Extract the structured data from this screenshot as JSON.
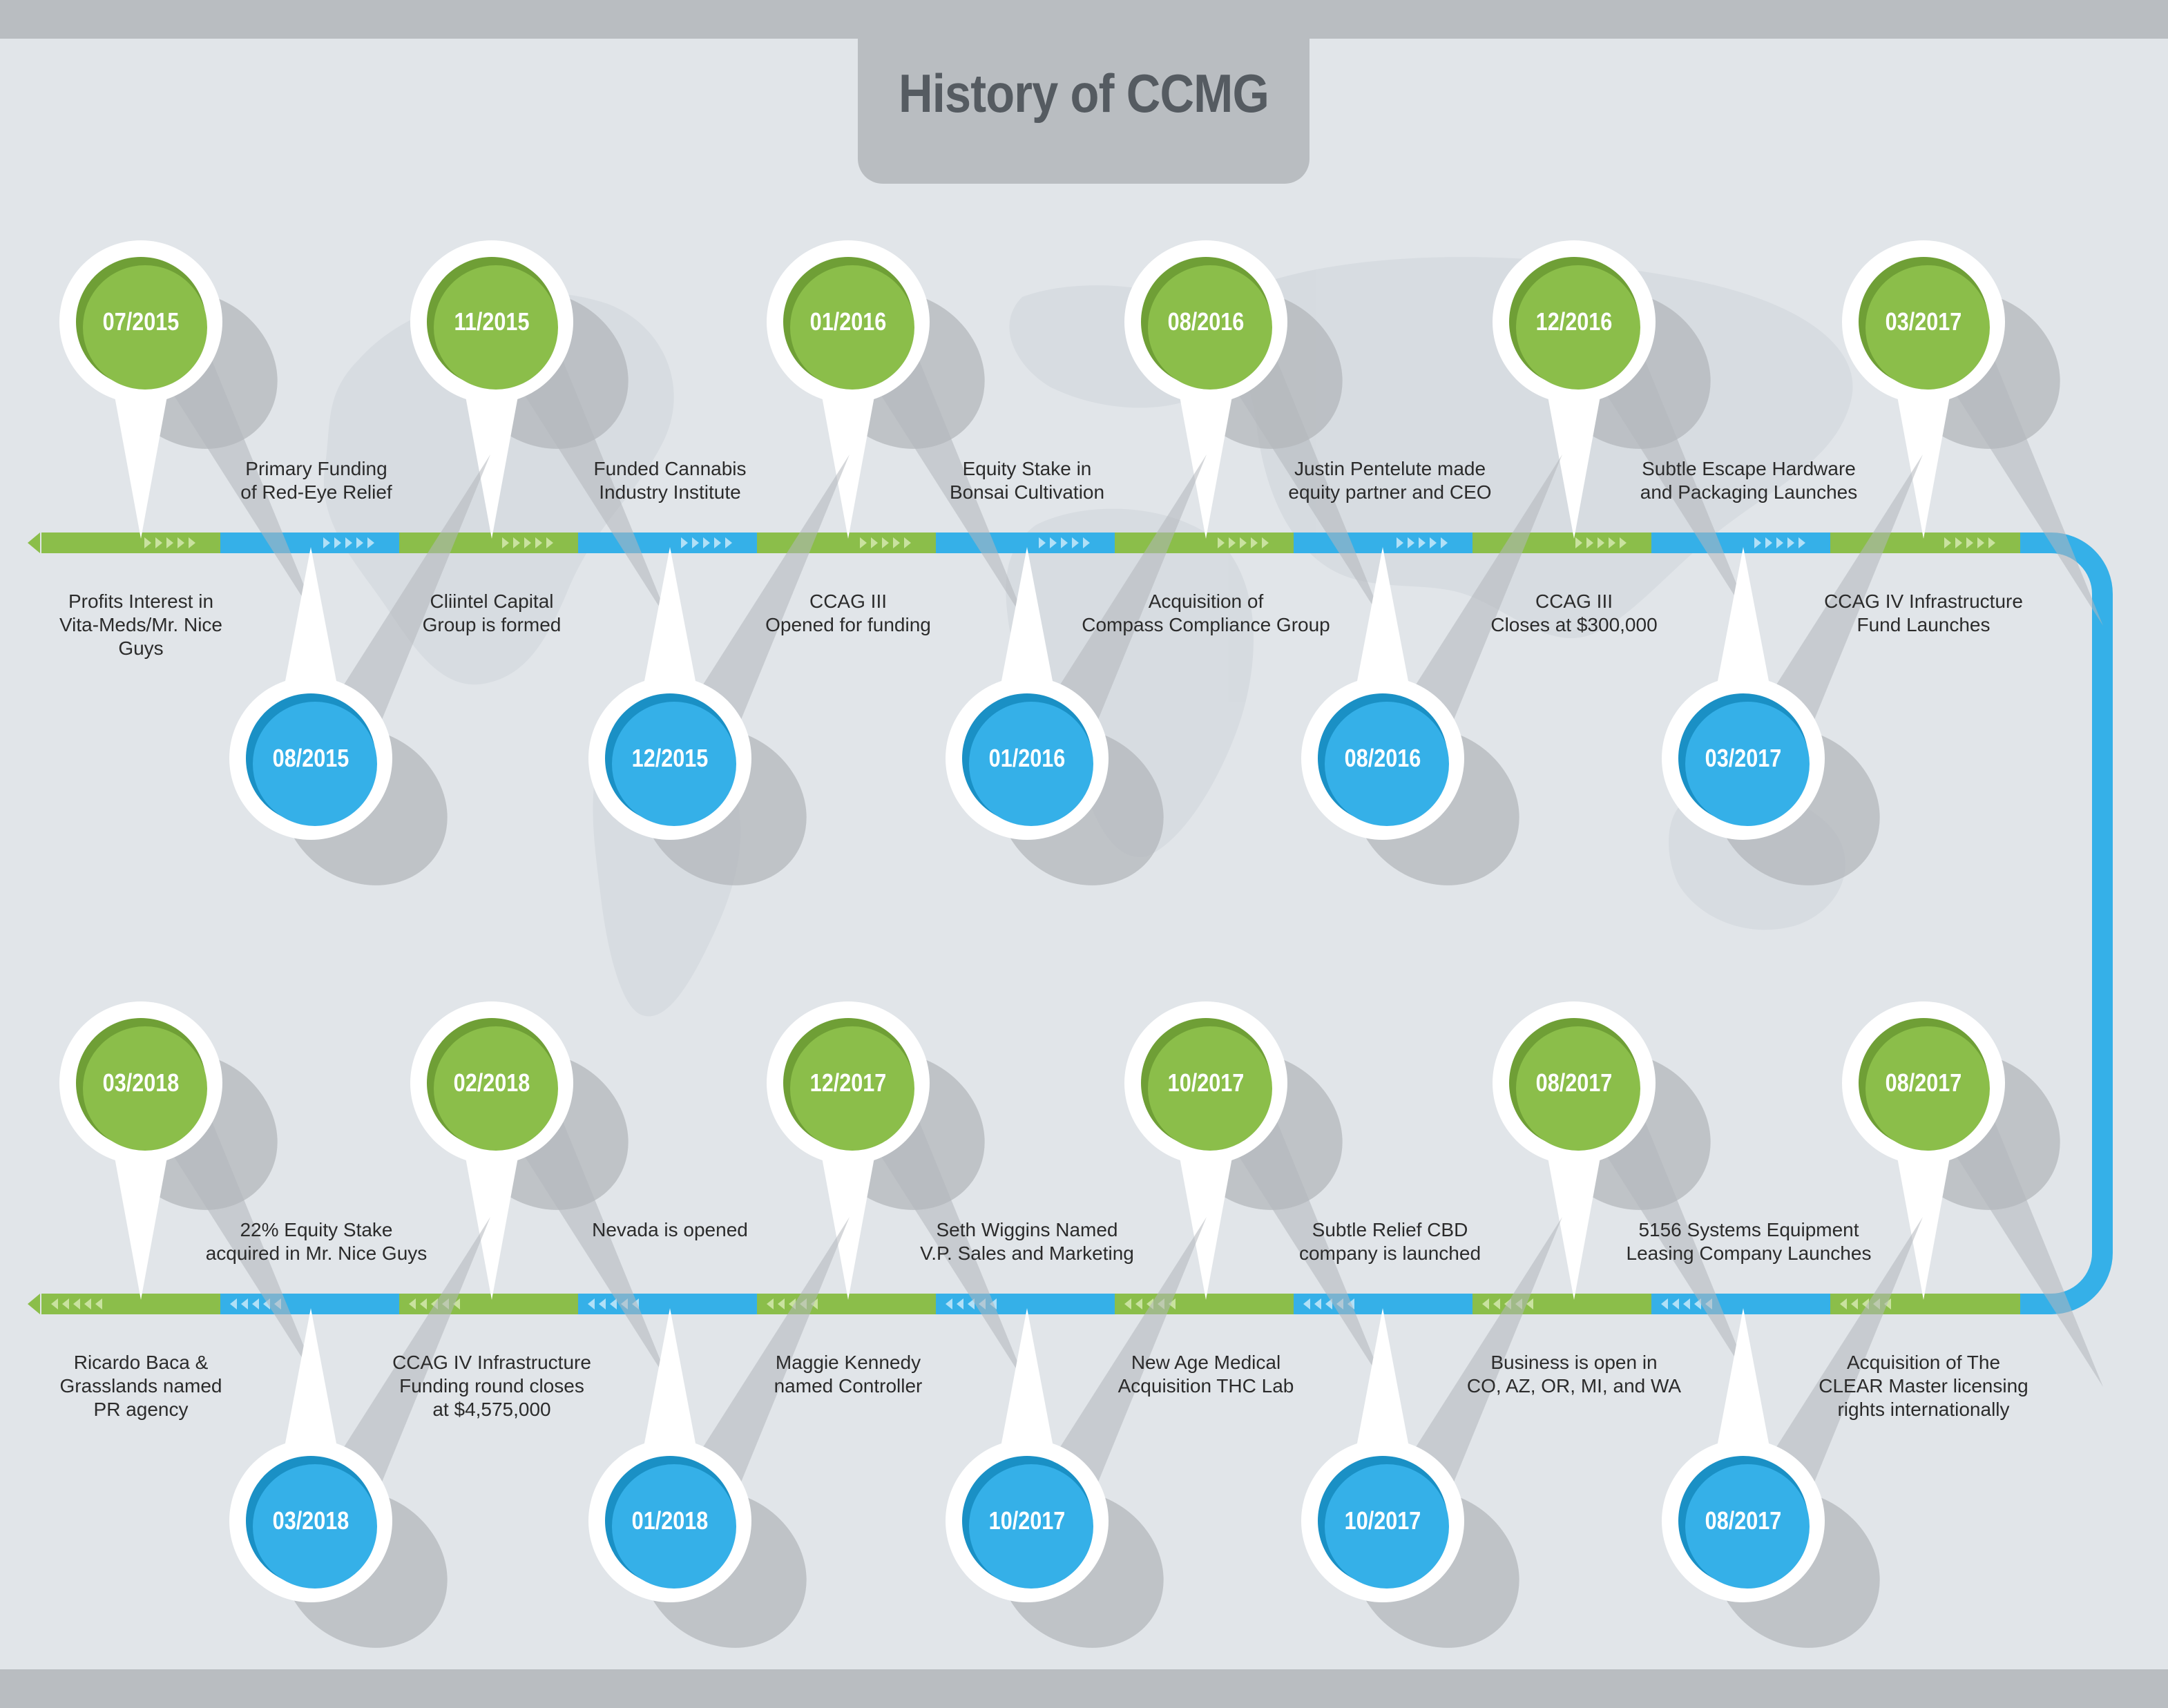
{
  "title": "History of CCMG",
  "colors": {
    "background": "#e1e5e9",
    "band": "#b9bdc1",
    "green": "#8bbe4a",
    "green_dark": "#6f9f36",
    "blue": "#35b0e8",
    "blue_dark": "#1a90c5",
    "title": "#555b61",
    "text": "#2b2b2b"
  },
  "top_row": {
    "pins_up": [
      "07/2015",
      "11/2015",
      "01/2016",
      "08/2016",
      "12/2016",
      "03/2017"
    ],
    "pins_down": [
      "08/2015",
      "12/2015",
      "01/2016",
      "08/2016",
      "03/2017"
    ],
    "events_above": [
      "Primary Funding\nof Red-Eye Relief",
      "Funded Cannabis\nIndustry Institute",
      "Equity Stake in\nBonsai Cultivation",
      "Justin Pentelute made\nequity partner and CEO",
      "Subtle Escape Hardware\nand Packaging Launches"
    ],
    "events_below": [
      "Profits Interest in\nVita-Meds/Mr. Nice\nGuys",
      "Cliintel Capital\nGroup is formed",
      "CCAG III\nOpened for funding",
      "Acquisition of\nCompass Compliance Group",
      "CCAG III\nCloses at $300,000",
      "CCAG IV Infrastructure\nFund Launches"
    ]
  },
  "bottom_row": {
    "pins_up": [
      "03/2018",
      "02/2018",
      "12/2017",
      "10/2017",
      "08/2017",
      "08/2017"
    ],
    "pins_down": [
      "03/2018",
      "01/2018",
      "10/2017",
      "10/2017",
      "08/2017"
    ],
    "events_above": [
      "22% Equity Stake\nacquired in Mr. Nice Guys",
      "Nevada is opened",
      "Seth Wiggins Named\nV.P. Sales and Marketing",
      "Subtle Relief CBD\ncompany is launched",
      "5156 Systems Equipment\nLeasing Company Launches"
    ],
    "events_below": [
      "Ricardo Baca &\nGrasslands named\nPR agency",
      "CCAG IV Infrastructure\nFunding round closes\nat $4,575,000",
      "Maggie Kennedy\nnamed Controller",
      "New Age Medical\nAcquisition THC Lab",
      "Business is open in\nCO, AZ, OR, MI, and WA",
      "Acquisition of The\nCLEAR Master licensing\nrights internationally"
    ]
  }
}
